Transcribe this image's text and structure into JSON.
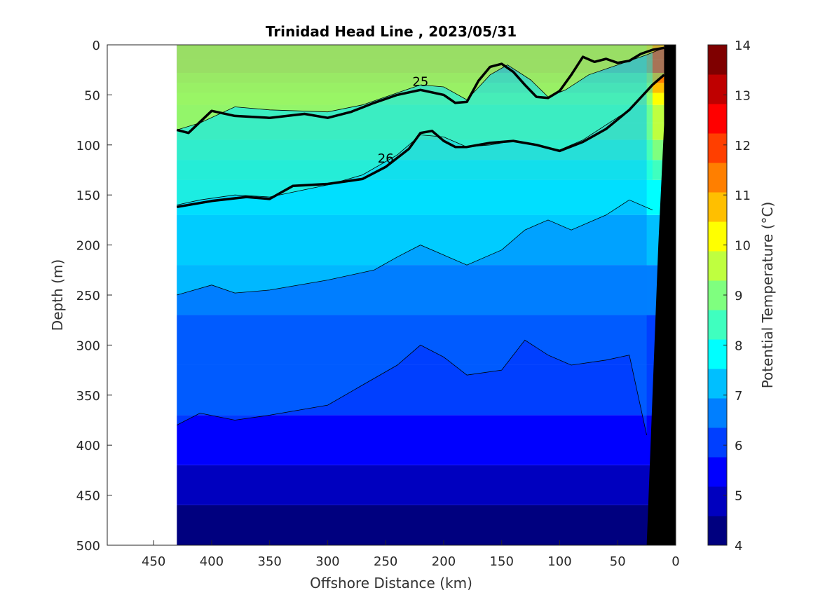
{
  "chart_data": {
    "type": "heatmap",
    "title": "Trinidad Head Line , 2023/05/31",
    "xlabel": "Offshore Distance (km)",
    "ylabel": "Depth (m)",
    "colorbar_label": "Potential Temperature (°C)",
    "x_reversed": true,
    "y_reversed": true,
    "xlim": [
      0,
      490
    ],
    "ylim": [
      0,
      500
    ],
    "x_ticks": [
      450,
      400,
      350,
      300,
      250,
      200,
      150,
      100,
      50,
      0
    ],
    "y_ticks": [
      0,
      50,
      100,
      150,
      200,
      250,
      300,
      350,
      400,
      450,
      500
    ],
    "clim": [
      4,
      14
    ],
    "colorbar_ticks": [
      4,
      5,
      6,
      7,
      8,
      9,
      10,
      11,
      12,
      13,
      14
    ],
    "colors": [
      "#00007f",
      "#0000bf",
      "#0000ff",
      "#003fff",
      "#007fff",
      "#00bfff",
      "#00ffff",
      "#3fffbf",
      "#7fff7f",
      "#bfff3f",
      "#ffff00",
      "#ffbf00",
      "#ff7f00",
      "#ff3f00",
      "#ff0000",
      "#bf0000",
      "#7f0000"
    ],
    "section_x_range": [
      10,
      430
    ],
    "bathymetry": [
      [
        10,
        0
      ],
      [
        0,
        0
      ],
      [
        0,
        500
      ],
      [
        25,
        500
      ],
      [
        15,
        200
      ],
      [
        10,
        80
      ]
    ],
    "isotherm_levels": [
      {
        "temp": 6.5,
        "x": [
          430,
          410,
          380,
          350,
          300,
          270,
          240,
          220,
          200,
          180,
          150,
          130,
          110,
          90,
          60,
          40,
          25
        ],
        "y": [
          380,
          368,
          375,
          370,
          360,
          340,
          320,
          300,
          312,
          330,
          325,
          295,
          310,
          320,
          315,
          310,
          390
        ]
      },
      {
        "temp": 7.5,
        "x": [
          430,
          400,
          380,
          350,
          300,
          260,
          240,
          220,
          200,
          180,
          150,
          130,
          110,
          90,
          60,
          40,
          20
        ],
        "y": [
          250,
          240,
          248,
          245,
          235,
          225,
          212,
          200,
          210,
          220,
          205,
          185,
          175,
          185,
          170,
          155,
          165
        ]
      },
      {
        "temp": 10.0,
        "x": [
          430,
          410,
          380,
          350,
          300,
          270,
          240,
          220,
          200,
          180,
          160,
          145,
          125,
          110,
          95,
          75,
          50,
          25,
          10
        ],
        "y": [
          85,
          78,
          62,
          65,
          67,
          60,
          48,
          40,
          42,
          55,
          30,
          20,
          35,
          52,
          45,
          30,
          20,
          10,
          3
        ]
      },
      {
        "temp": 8.5,
        "x": [
          430,
          410,
          380,
          350,
          300,
          270,
          240,
          220,
          200,
          180,
          160,
          140,
          120,
          100,
          80,
          60,
          40,
          20,
          10
        ],
        "y": [
          160,
          155,
          150,
          152,
          140,
          130,
          110,
          90,
          92,
          102,
          100,
          96,
          100,
          105,
          95,
          80,
          65,
          40,
          30
        ]
      }
    ],
    "density_contours": [
      {
        "label": "25",
        "x": [
          430,
          420,
          400,
          380,
          350,
          320,
          300,
          280,
          260,
          240,
          220,
          200,
          190,
          180,
          170,
          160,
          150,
          140,
          130,
          120,
          110,
          100,
          90,
          80,
          70,
          60,
          50,
          40,
          30,
          20,
          10
        ],
        "y": [
          85,
          88,
          66,
          71,
          73,
          69,
          73,
          67,
          58,
          50,
          45,
          50,
          58,
          57,
          36,
          22,
          19,
          27,
          40,
          52,
          53,
          46,
          30,
          12,
          17,
          14,
          18,
          16,
          9,
          5,
          3
        ]
      },
      {
        "label": "26",
        "x": [
          430,
          400,
          370,
          350,
          330,
          300,
          270,
          250,
          230,
          220,
          210,
          200,
          190,
          180,
          160,
          140,
          120,
          100,
          80,
          60,
          40,
          20,
          10
        ],
        "y": [
          162,
          156,
          152,
          154,
          141,
          139,
          134,
          122,
          104,
          88,
          86,
          96,
          102,
          102,
          98,
          96,
          100,
          106,
          97,
          84,
          65,
          40,
          30
        ]
      }
    ]
  }
}
